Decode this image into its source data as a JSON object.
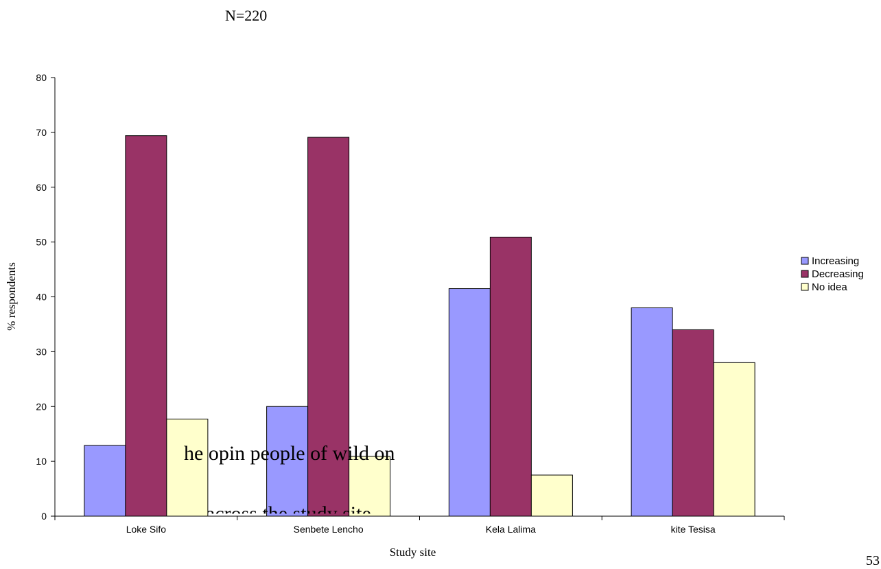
{
  "header": {
    "n_text": "N=220"
  },
  "overlay": {
    "line1": "he opin             people           of wild                 on",
    "line2": "across the study site."
  },
  "page_number": "53",
  "chart_data": {
    "type": "bar",
    "title": "",
    "xlabel": "Study site",
    "ylabel": "% respondents",
    "ylim": [
      0,
      80
    ],
    "yticks": [
      0,
      10,
      20,
      30,
      40,
      50,
      60,
      70,
      80
    ],
    "categories": [
      "Loke Sifo",
      "Senbete Lencho",
      "Kela Lalima",
      "kite Tesisa"
    ],
    "series": [
      {
        "name": "Increasing",
        "color": "#9999ff",
        "values": [
          12.9,
          20,
          41.5,
          38
        ]
      },
      {
        "name": "Decreasing",
        "color": "#993366",
        "values": [
          69.4,
          69.1,
          50.9,
          34
        ]
      },
      {
        "name": "No idea",
        "color": "#ffffcc",
        "values": [
          17.7,
          10.9,
          7.5,
          28
        ]
      }
    ],
    "grid": false,
    "legend": "right"
  }
}
